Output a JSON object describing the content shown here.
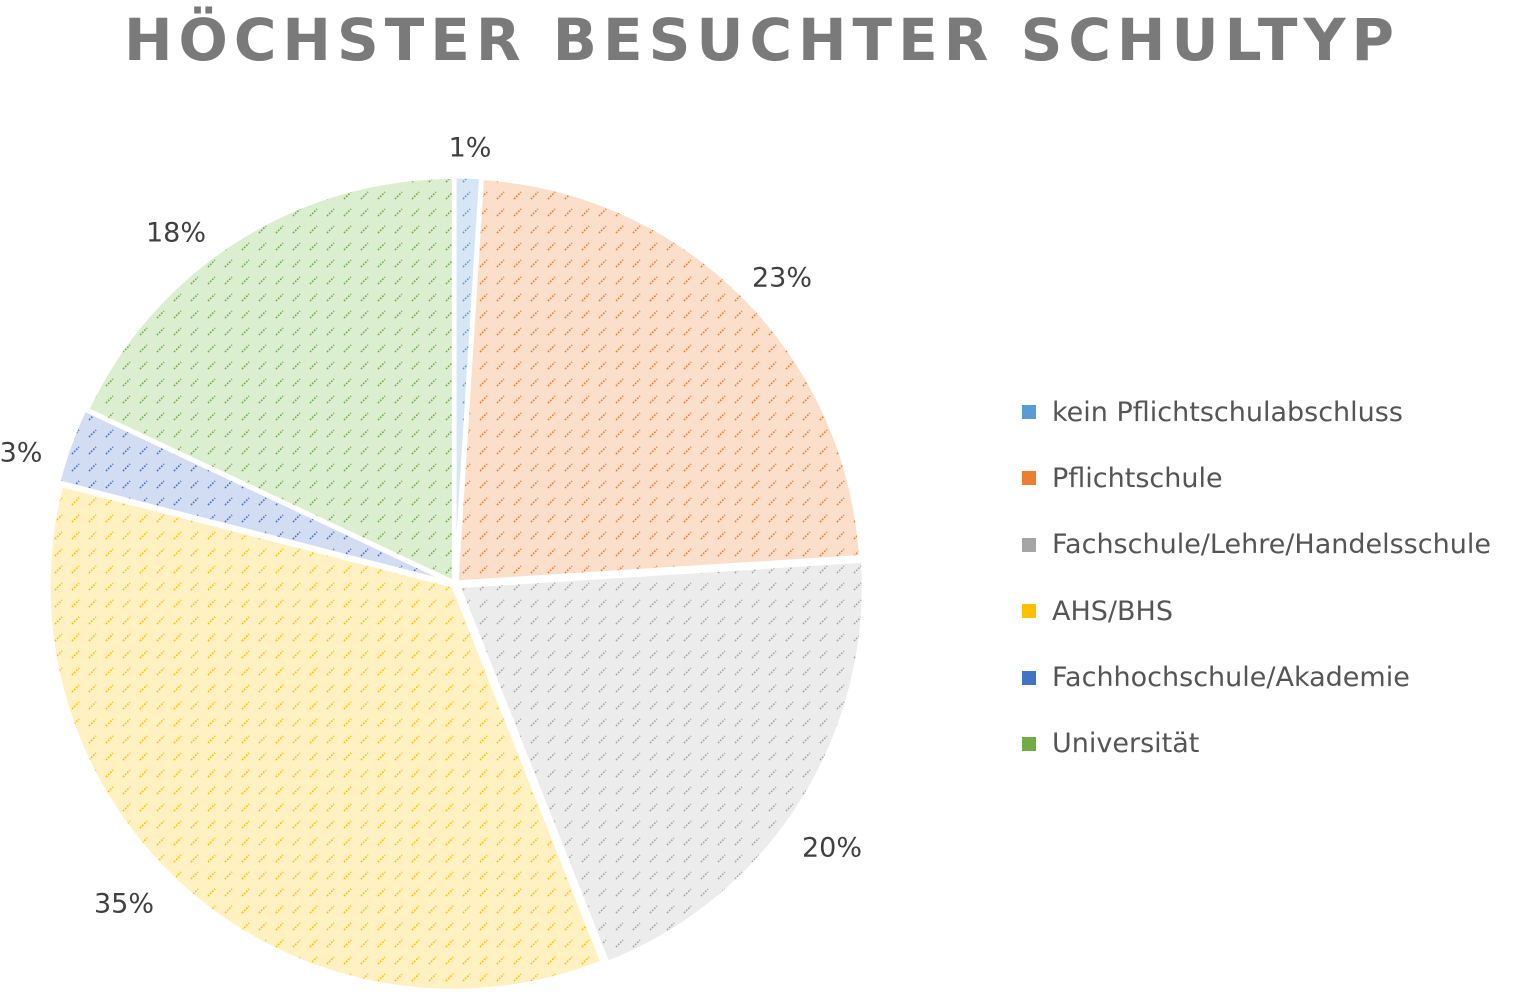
{
  "chart_data": {
    "type": "pie",
    "title": "HÖCHSTER BESUCHTER SCHULTYP",
    "legend_position": "right",
    "categories": [
      "kein Pflichtschulabschluss",
      "Pflichtschule",
      "Fachschule/Lehre/Handelsschule",
      "AHS/BHS",
      "Fachhochschule/Akademie",
      "Universität"
    ],
    "values": [
      1,
      23,
      20,
      35,
      3,
      18
    ],
    "labels": [
      "1%",
      "23%",
      "20%",
      "35%",
      "3%",
      "18%"
    ],
    "colors": [
      "#5b9bd5",
      "#ed7d31",
      "#a5a5a5",
      "#ffc000",
      "#4472c4",
      "#70ad47"
    ],
    "fill_colors": [
      "#d6e6f5",
      "#fbdfcb",
      "#ececec",
      "#fff1c2",
      "#d2dcf2",
      "#dceed0"
    ]
  }
}
